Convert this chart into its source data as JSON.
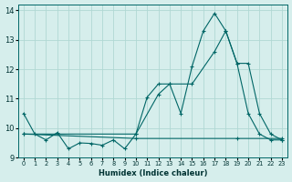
{
  "xlabel": "Humidex (Indice chaleur)",
  "bg_color": "#d6eeec",
  "grid_color": "#b0d8d4",
  "line_color": "#006666",
  "xlim": [
    -0.5,
    23.5
  ],
  "ylim": [
    9.0,
    14.2
  ],
  "yticks": [
    9,
    10,
    11,
    12,
    13,
    14
  ],
  "xtick_labels": [
    "0",
    "1",
    "2",
    "3",
    "4",
    "5",
    "6",
    "7",
    "8",
    "9",
    "10",
    "11",
    "12",
    "13",
    "14",
    "15",
    "16",
    "17",
    "18",
    "19",
    "20",
    "21",
    "22",
    "23"
  ],
  "series1_x": [
    0,
    1,
    2,
    3,
    4,
    5,
    6,
    7,
    8,
    9,
    10,
    11,
    12,
    13,
    14,
    15,
    16,
    17,
    18,
    19,
    20,
    21,
    22,
    23
  ],
  "series1_y": [
    10.5,
    9.8,
    9.6,
    9.85,
    9.3,
    9.5,
    9.48,
    9.42,
    9.6,
    9.3,
    9.8,
    11.05,
    11.5,
    11.5,
    10.5,
    12.1,
    13.3,
    13.9,
    13.3,
    12.2,
    10.5,
    9.8,
    9.6,
    9.6
  ],
  "series2_x": [
    0,
    10,
    12,
    13,
    15,
    17,
    18,
    19,
    20,
    21,
    22,
    23
  ],
  "series2_y": [
    9.8,
    9.8,
    11.15,
    11.5,
    11.5,
    12.6,
    13.3,
    12.2,
    12.2,
    10.5,
    9.8,
    9.6
  ],
  "series3_x": [
    0,
    10,
    19,
    23
  ],
  "series3_y": [
    9.8,
    9.65,
    9.65,
    9.65
  ]
}
